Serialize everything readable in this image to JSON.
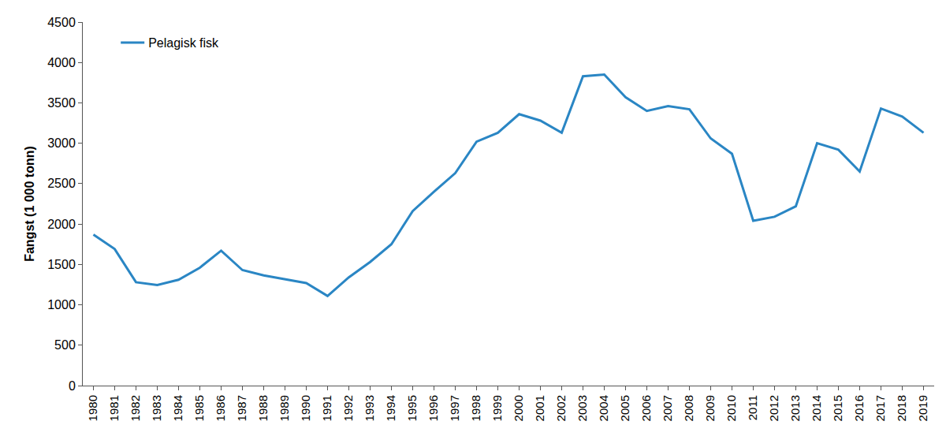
{
  "chart_data": {
    "type": "line",
    "y_label": "Fangst (1 000 tonn)",
    "categories": [
      "1980",
      "1981",
      "1982",
      "1983",
      "1984",
      "1985",
      "1986",
      "1987",
      "1988",
      "1989",
      "1990",
      "1991",
      "1992",
      "1993",
      "1994",
      "1995",
      "1996",
      "1997",
      "1998",
      "1999",
      "2000",
      "2001",
      "2002",
      "2003",
      "2004",
      "2005",
      "2006",
      "2007",
      "2008",
      "2009",
      "2010",
      "2011",
      "2012",
      "2013",
      "2014",
      "2015",
      "2016",
      "2017",
      "2018",
      "2019"
    ],
    "series": [
      {
        "name": "Pelagisk fisk",
        "color": "#2a86c4",
        "values": [
          1870,
          1690,
          1280,
          1245,
          1310,
          1460,
          1670,
          1430,
          1365,
          1320,
          1270,
          1110,
          1340,
          1530,
          1750,
          2160,
          2400,
          2630,
          3020,
          3130,
          3360,
          3280,
          3130,
          3830,
          3850,
          3570,
          3400,
          3460,
          3420,
          3060,
          2870,
          2040,
          2090,
          2220,
          3000,
          2920,
          2650,
          3430,
          3330,
          3130
        ]
      }
    ],
    "ylim": [
      0,
      4500
    ],
    "yticks": [
      0,
      500,
      1000,
      1500,
      2000,
      2500,
      3000,
      3500,
      4000,
      4500
    ],
    "grid": false,
    "legend": "upper left"
  }
}
